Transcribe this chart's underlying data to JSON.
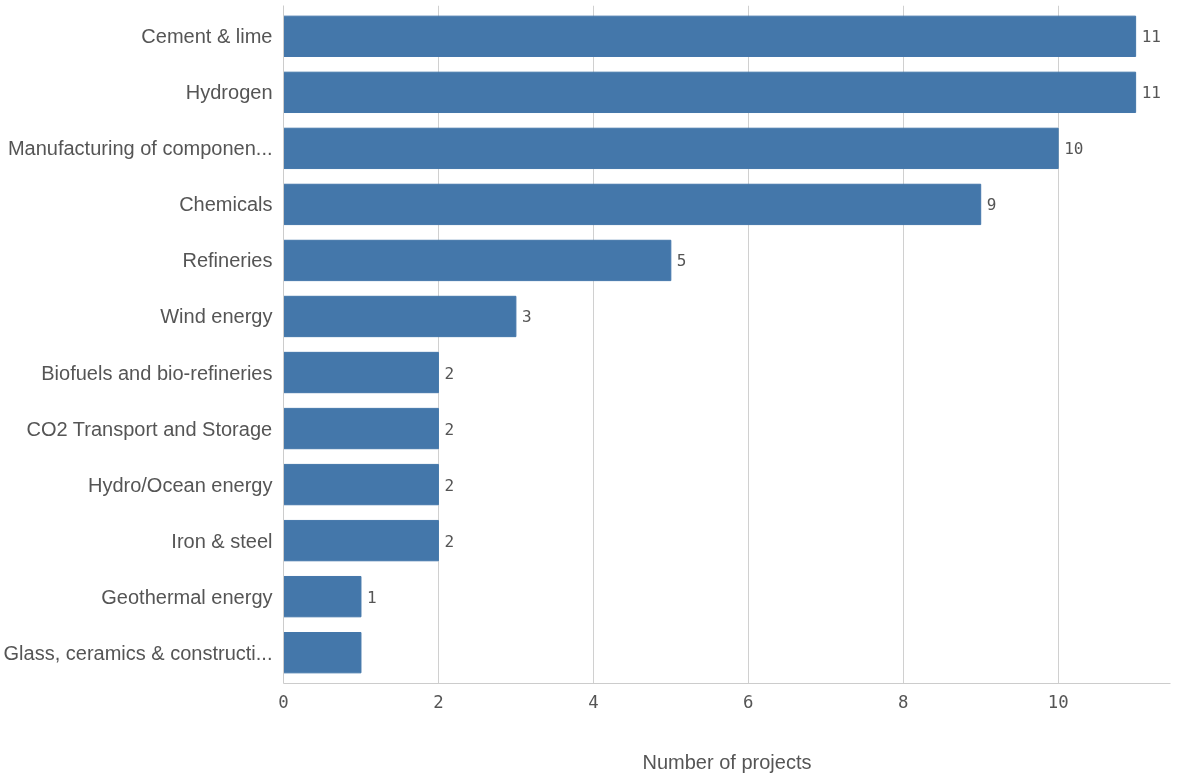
{
  "chart_data": {
    "type": "bar",
    "orientation": "horizontal",
    "xlabel": "Number of projects",
    "categories": [
      "Cement & lime",
      "Hydrogen",
      "Manufacturing of componen...",
      "Chemicals",
      "Refineries",
      "Wind energy",
      "Biofuels and bio-refineries",
      "CO2 Transport and Storage",
      "Hydro/Ocean energy",
      "Iron & steel",
      "Geothermal energy",
      "Glass, ceramics & constructi..."
    ],
    "values": [
      11,
      11,
      10,
      9,
      5,
      3,
      2,
      2,
      2,
      2,
      1,
      1
    ],
    "value_labels": [
      "11",
      "11",
      "10",
      "9",
      "5",
      "3",
      "2",
      "2",
      "2",
      "2",
      "1",
      null
    ],
    "color": "#4477aa",
    "xlim": [
      0,
      11.45
    ],
    "xticks": [
      0,
      2,
      4,
      6,
      8,
      10
    ],
    "grid": "x"
  }
}
